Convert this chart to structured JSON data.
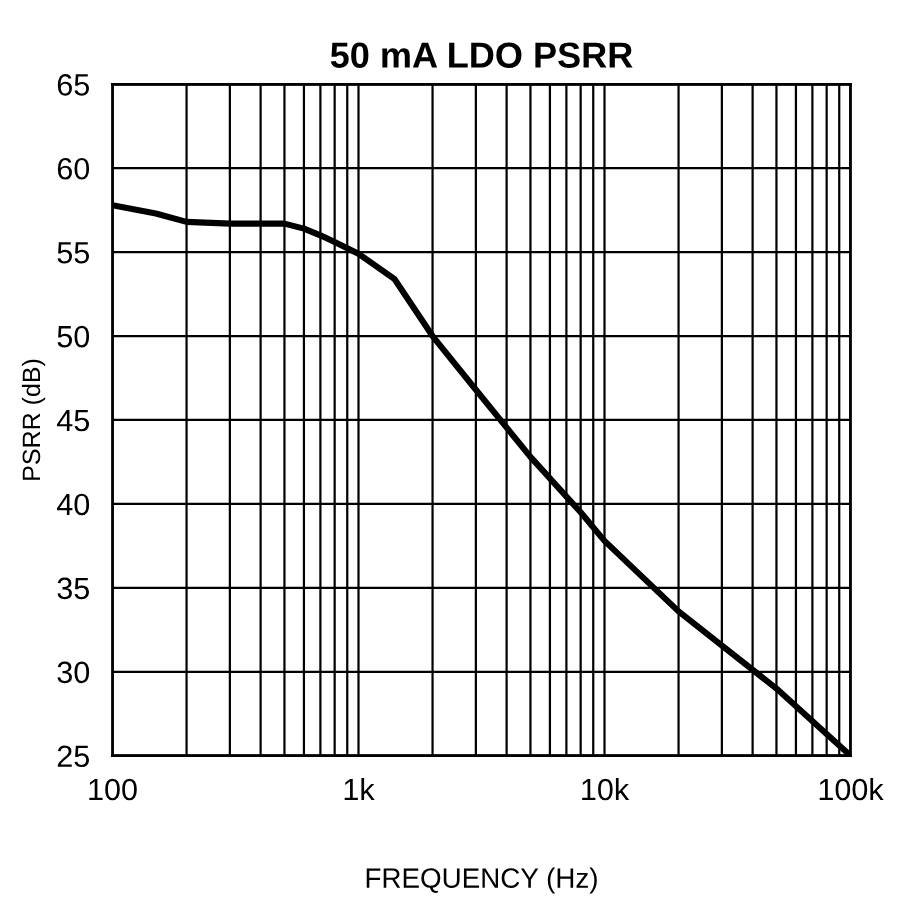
{
  "chart_data": {
    "type": "line",
    "title": "50 mA LDO PSRR",
    "xlabel": "FREQUENCY (Hz)",
    "ylabel": "PSRR (dB)",
    "log": "x",
    "grid": true,
    "marker": "none",
    "line_style": "solid",
    "xlim": [
      100,
      100000
    ],
    "ylim": [
      25,
      65
    ],
    "xticks": [
      {
        "value": 100,
        "label": "100"
      },
      {
        "value": 200,
        "label": null
      },
      {
        "value": 300,
        "label": null
      },
      {
        "value": 400,
        "label": null
      },
      {
        "value": 500,
        "label": null
      },
      {
        "value": 600,
        "label": null
      },
      {
        "value": 700,
        "label": null
      },
      {
        "value": 800,
        "label": null
      },
      {
        "value": 900,
        "label": null
      },
      {
        "value": 1000,
        "label": "1k"
      },
      {
        "value": 2000,
        "label": null
      },
      {
        "value": 3000,
        "label": null
      },
      {
        "value": 4000,
        "label": null
      },
      {
        "value": 5000,
        "label": null
      },
      {
        "value": 6000,
        "label": null
      },
      {
        "value": 7000,
        "label": null
      },
      {
        "value": 8000,
        "label": null
      },
      {
        "value": 9000,
        "label": null
      },
      {
        "value": 10000,
        "label": "10k"
      },
      {
        "value": 20000,
        "label": null
      },
      {
        "value": 30000,
        "label": null
      },
      {
        "value": 40000,
        "label": null
      },
      {
        "value": 50000,
        "label": null
      },
      {
        "value": 60000,
        "label": null
      },
      {
        "value": 70000,
        "label": null
      },
      {
        "value": 80000,
        "label": null
      },
      {
        "value": 90000,
        "label": null
      },
      {
        "value": 100000,
        "label": "100k"
      }
    ],
    "yticks": [
      25,
      30,
      35,
      40,
      45,
      50,
      55,
      60,
      65
    ],
    "series": [
      {
        "color": "#000000",
        "x": [
          100,
          150,
          200,
          300,
          500,
          600,
          700,
          800,
          1000,
          1400,
          2000,
          3000,
          5000,
          8000,
          10000,
          20000,
          50000,
          100000
        ],
        "values": [
          57.8,
          57.3,
          56.8,
          56.7,
          56.7,
          56.4,
          56.0,
          55.6,
          54.9,
          53.4,
          50.0,
          46.8,
          42.8,
          39.5,
          37.8,
          33.6,
          29.0,
          25.0
        ]
      }
    ]
  }
}
